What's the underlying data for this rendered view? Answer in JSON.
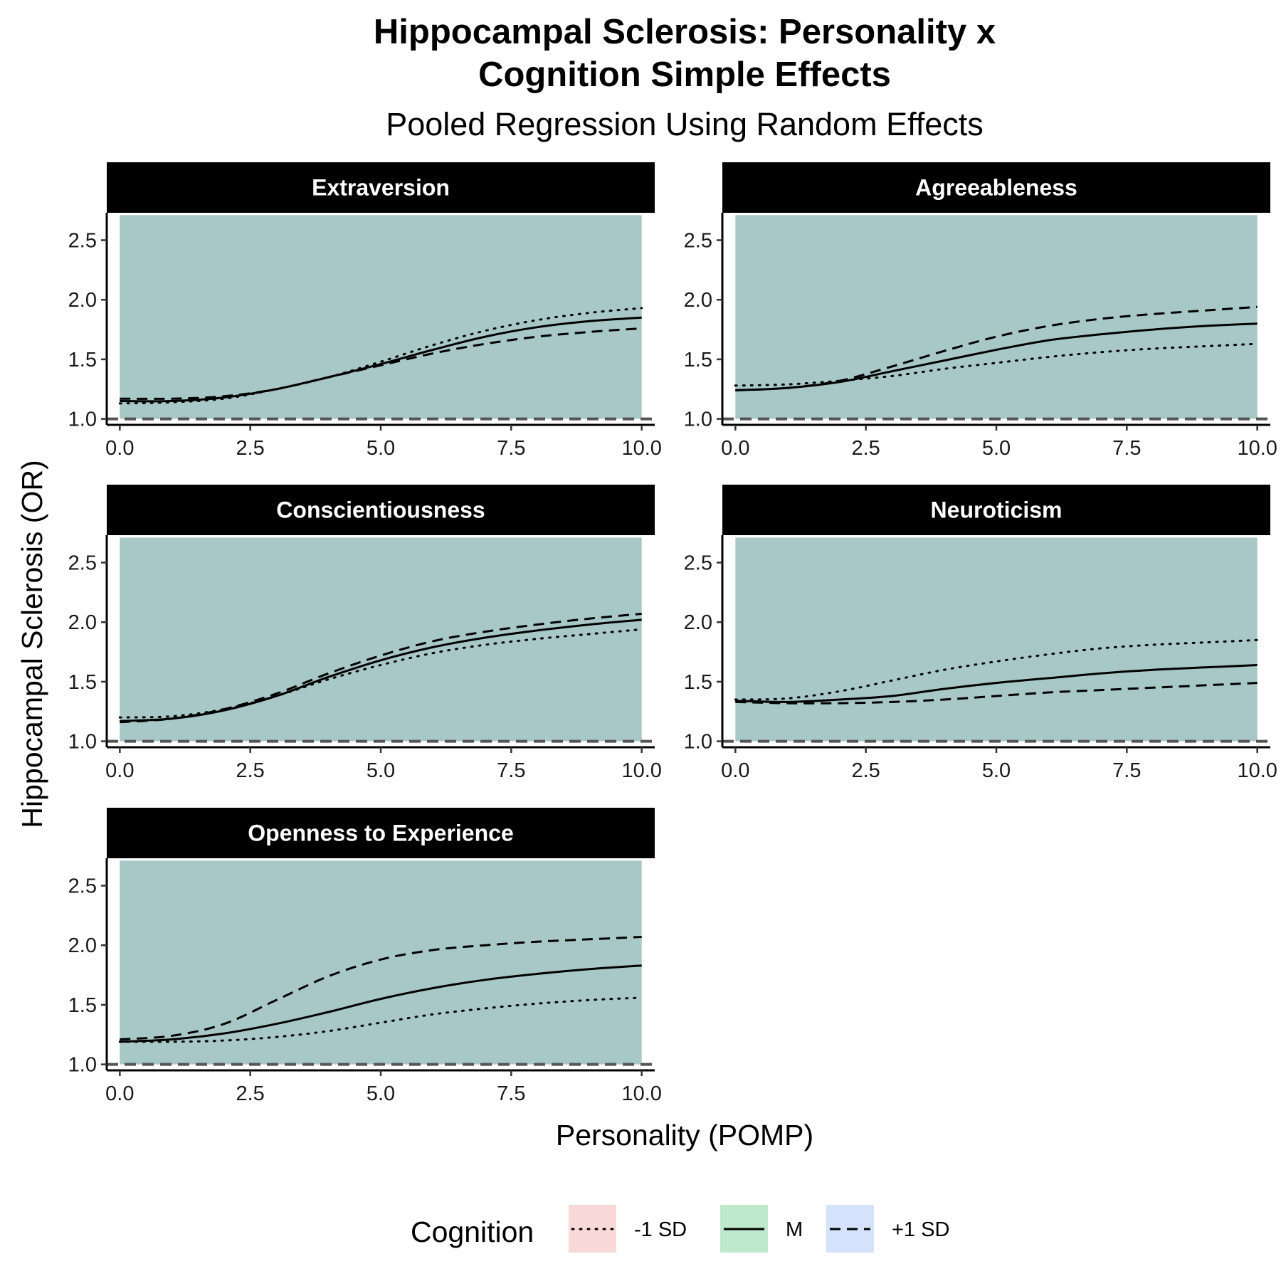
{
  "title_line1": "Hippocampal Sclerosis: Personality x",
  "title_line2": "Cognition Simple Effects",
  "subtitle": "Pooled Regression Using Random Effects",
  "xlabel": "Personality (POMP)",
  "ylabel": "Hippocampal Sclerosis (OR)",
  "legend": {
    "title": "Cognition",
    "items": [
      {
        "label": "-1 SD",
        "linetype": "dotted",
        "swatch_color": "#f9d9d7"
      },
      {
        "label": "M",
        "linetype": "solid",
        "swatch_color": "#bfe9cd"
      },
      {
        "label": "+1 SD",
        "linetype": "dashed",
        "swatch_color": "#d4e2fb"
      }
    ]
  },
  "colors": {
    "ribbon": "#a8c7c7",
    "line": "#000000",
    "reference_line": "#555555",
    "strip_background": "#000000",
    "strip_text": "#ffffff"
  },
  "chart_data": {
    "type": "line",
    "facet_by": "trait",
    "x_ticks": [
      "0.0",
      "2.5",
      "5.0",
      "7.5",
      "10.0"
    ],
    "y_ticks": [
      "1.0",
      "1.5",
      "2.0",
      "2.5"
    ],
    "xlim": [
      -0.25,
      10.25
    ],
    "ylim": [
      0.95,
      2.73
    ],
    "reference_line_y": 1.0,
    "ribbon": {
      "x": [
        0,
        10
      ],
      "lower": 1.0,
      "upper": 2.71
    },
    "x": [
      0,
      1,
      2,
      3,
      4,
      5,
      6,
      7,
      8,
      9,
      10
    ],
    "panels": [
      {
        "name": "Extraversion",
        "series": [
          {
            "name": "-1 SD",
            "values": [
              1.13,
              1.14,
              1.17,
              1.25,
              1.35,
              1.48,
              1.62,
              1.74,
              1.83,
              1.89,
              1.93
            ]
          },
          {
            "name": "M",
            "values": [
              1.15,
              1.15,
              1.18,
              1.25,
              1.35,
              1.46,
              1.58,
              1.69,
              1.77,
              1.82,
              1.85
            ]
          },
          {
            "name": "+1 SD",
            "values": [
              1.17,
              1.17,
              1.19,
              1.25,
              1.35,
              1.45,
              1.55,
              1.63,
              1.69,
              1.73,
              1.76
            ]
          }
        ]
      },
      {
        "name": "Agreeableness",
        "series": [
          {
            "name": "-1 SD",
            "values": [
              1.28,
              1.29,
              1.32,
              1.36,
              1.42,
              1.47,
              1.52,
              1.56,
              1.59,
              1.61,
              1.63
            ]
          },
          {
            "name": "M",
            "values": [
              1.24,
              1.26,
              1.31,
              1.4,
              1.49,
              1.58,
              1.66,
              1.71,
              1.75,
              1.78,
              1.8
            ]
          },
          {
            "name": "+1 SD",
            "values": [
              1.24,
              1.26,
              1.32,
              1.44,
              1.57,
              1.69,
              1.78,
              1.84,
              1.88,
              1.91,
              1.94
            ]
          }
        ]
      },
      {
        "name": "Conscientiousness",
        "series": [
          {
            "name": "-1 SD",
            "values": [
              1.2,
              1.21,
              1.27,
              1.38,
              1.52,
              1.64,
              1.74,
              1.81,
              1.86,
              1.9,
              1.94
            ]
          },
          {
            "name": "M",
            "values": [
              1.17,
              1.19,
              1.26,
              1.38,
              1.54,
              1.68,
              1.79,
              1.87,
              1.93,
              1.98,
              2.02
            ]
          },
          {
            "name": "+1 SD",
            "values": [
              1.16,
              1.19,
              1.27,
              1.4,
              1.57,
              1.72,
              1.84,
              1.92,
              1.98,
              2.03,
              2.07
            ]
          }
        ]
      },
      {
        "name": "Neuroticism",
        "series": [
          {
            "name": "-1 SD",
            "values": [
              1.35,
              1.36,
              1.42,
              1.51,
              1.6,
              1.67,
              1.73,
              1.78,
              1.81,
              1.83,
              1.85
            ]
          },
          {
            "name": "M",
            "values": [
              1.34,
              1.33,
              1.35,
              1.38,
              1.44,
              1.49,
              1.53,
              1.57,
              1.6,
              1.62,
              1.64
            ]
          },
          {
            "name": "+1 SD",
            "values": [
              1.33,
              1.32,
              1.32,
              1.33,
              1.35,
              1.38,
              1.41,
              1.43,
              1.45,
              1.47,
              1.49
            ]
          }
        ]
      },
      {
        "name": "Openness to Experience",
        "series": [
          {
            "name": "-1 SD",
            "values": [
              1.19,
              1.19,
              1.2,
              1.23,
              1.28,
              1.35,
              1.42,
              1.47,
              1.51,
              1.54,
              1.56
            ]
          },
          {
            "name": "M",
            "values": [
              1.19,
              1.21,
              1.26,
              1.34,
              1.44,
              1.55,
              1.64,
              1.71,
              1.76,
              1.8,
              1.83
            ]
          },
          {
            "name": "+1 SD",
            "values": [
              1.21,
              1.24,
              1.34,
              1.54,
              1.74,
              1.88,
              1.96,
              2.0,
              2.03,
              2.05,
              2.07
            ]
          }
        ]
      }
    ]
  }
}
